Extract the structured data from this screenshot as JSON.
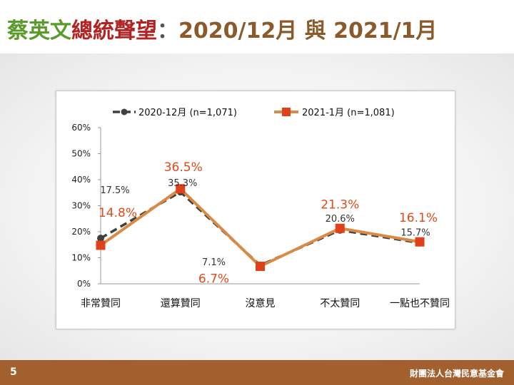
{
  "title": {
    "part1": "蔡英文",
    "part2": "總統聲望",
    "part3": "：",
    "part4": "2020/12月",
    "part5": " 與 ",
    "part6": "2021/1月"
  },
  "footer": {
    "page_number": "5",
    "organization": "財團法人台灣民意基金會"
  },
  "chart_data": {
    "type": "line",
    "categories": [
      "非常贊同",
      "還算贊同",
      "沒意見",
      "不太贊同",
      "一點也不贊同"
    ],
    "ylim": [
      0,
      60
    ],
    "yticks": [
      0,
      10,
      20,
      30,
      40,
      50,
      60
    ],
    "ytick_labels": [
      "0%",
      "10%",
      "20%",
      "30%",
      "40%",
      "50%",
      "60%"
    ],
    "legend_position": "top",
    "series": [
      {
        "name": "2020-12月  (n=1,071)",
        "values": [
          17.5,
          35.3,
          7.1,
          20.6,
          15.7
        ],
        "labels": [
          "17.5%",
          "35.3%",
          "7.1%",
          "20.6%",
          "15.7%"
        ],
        "color": "#404040",
        "label_color": "#333333"
      },
      {
        "name": "2021-1月  (n=1,081)",
        "values": [
          14.8,
          36.5,
          6.7,
          21.3,
          16.1
        ],
        "labels": [
          "14.8%",
          "36.5%",
          "6.7%",
          "21.3%",
          "16.1%"
        ],
        "color": "#d98b45",
        "marker_color": "#e0401a",
        "label_color": "#e04a1a"
      }
    ]
  }
}
